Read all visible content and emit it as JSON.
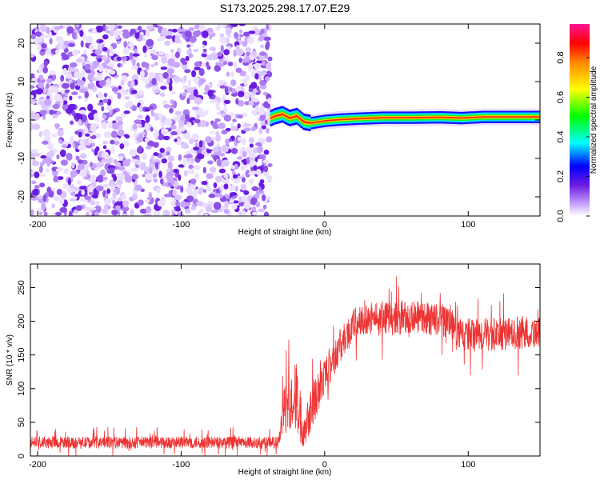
{
  "chart_data": [
    {
      "type": "heatmap",
      "title": "S173.2025.298.17.07.E29",
      "xlabel": "Height of straight line (km)",
      "ylabel": "Frequency (Hz)",
      "xlim": [
        -205,
        150
      ],
      "ylim": [
        -25,
        25
      ],
      "x_ticks": [
        -200,
        -100,
        0,
        100
      ],
      "y_ticks": [
        -20,
        -10,
        0,
        10,
        20
      ],
      "colorbar": {
        "label": "Normalized spectral amplitude",
        "range": [
          0.0,
          0.97
        ],
        "ticks": [
          0.0,
          0.2,
          0.4,
          0.6,
          0.8
        ]
      },
      "noise_region_x": [
        -205,
        -38
      ],
      "signal_track": [
        {
          "x": -38,
          "y": 0.5
        },
        {
          "x": -35,
          "y": 1.0
        },
        {
          "x": -30,
          "y": 1.5
        },
        {
          "x": -25,
          "y": 0.5
        },
        {
          "x": -20,
          "y": 1.0
        },
        {
          "x": -15,
          "y": -0.5
        },
        {
          "x": -10,
          "y": -0.8
        },
        {
          "x": -5,
          "y": -0.5
        },
        {
          "x": 0,
          "y": -0.2
        },
        {
          "x": 10,
          "y": 0.1
        },
        {
          "x": 20,
          "y": 0.3
        },
        {
          "x": 40,
          "y": 0.6
        },
        {
          "x": 60,
          "y": 0.6
        },
        {
          "x": 80,
          "y": 0.7
        },
        {
          "x": 95,
          "y": 0.5
        },
        {
          "x": 110,
          "y": 0.8
        },
        {
          "x": 130,
          "y": 0.8
        },
        {
          "x": 150,
          "y": 0.8
        }
      ]
    },
    {
      "type": "line",
      "xlabel": "Height of straight line (km)",
      "ylabel": "SNR (10 * v/v)",
      "xlim": [
        -205,
        150
      ],
      "ylim": [
        0,
        285
      ],
      "x_ticks": [
        -200,
        -100,
        0,
        100
      ],
      "y_ticks": [
        0,
        50,
        100,
        150,
        200,
        250
      ],
      "series": [
        {
          "name": "SNR",
          "color": "#ee3333",
          "envelope": [
            {
              "x": -205,
              "mean": 20,
              "spread": 9
            },
            {
              "x": -100,
              "mean": 20,
              "spread": 9
            },
            {
              "x": -32,
              "mean": 20,
              "spread": 9
            },
            {
              "x": -28,
              "mean": 70,
              "spread": 35
            },
            {
              "x": -20,
              "mean": 90,
              "spread": 55
            },
            {
              "x": -15,
              "mean": 40,
              "spread": 30
            },
            {
              "x": -10,
              "mean": 70,
              "spread": 35
            },
            {
              "x": 0,
              "mean": 120,
              "spread": 30
            },
            {
              "x": 10,
              "mean": 160,
              "spread": 25
            },
            {
              "x": 20,
              "mean": 195,
              "spread": 25
            },
            {
              "x": 30,
              "mean": 205,
              "spread": 25
            },
            {
              "x": 50,
              "mean": 205,
              "spread": 25
            },
            {
              "x": 70,
              "mean": 205,
              "spread": 25
            },
            {
              "x": 88,
              "mean": 200,
              "spread": 25
            },
            {
              "x": 92,
              "mean": 180,
              "spread": 25
            },
            {
              "x": 120,
              "mean": 180,
              "spread": 25
            },
            {
              "x": 150,
              "mean": 185,
              "spread": 25
            }
          ]
        }
      ]
    }
  ]
}
